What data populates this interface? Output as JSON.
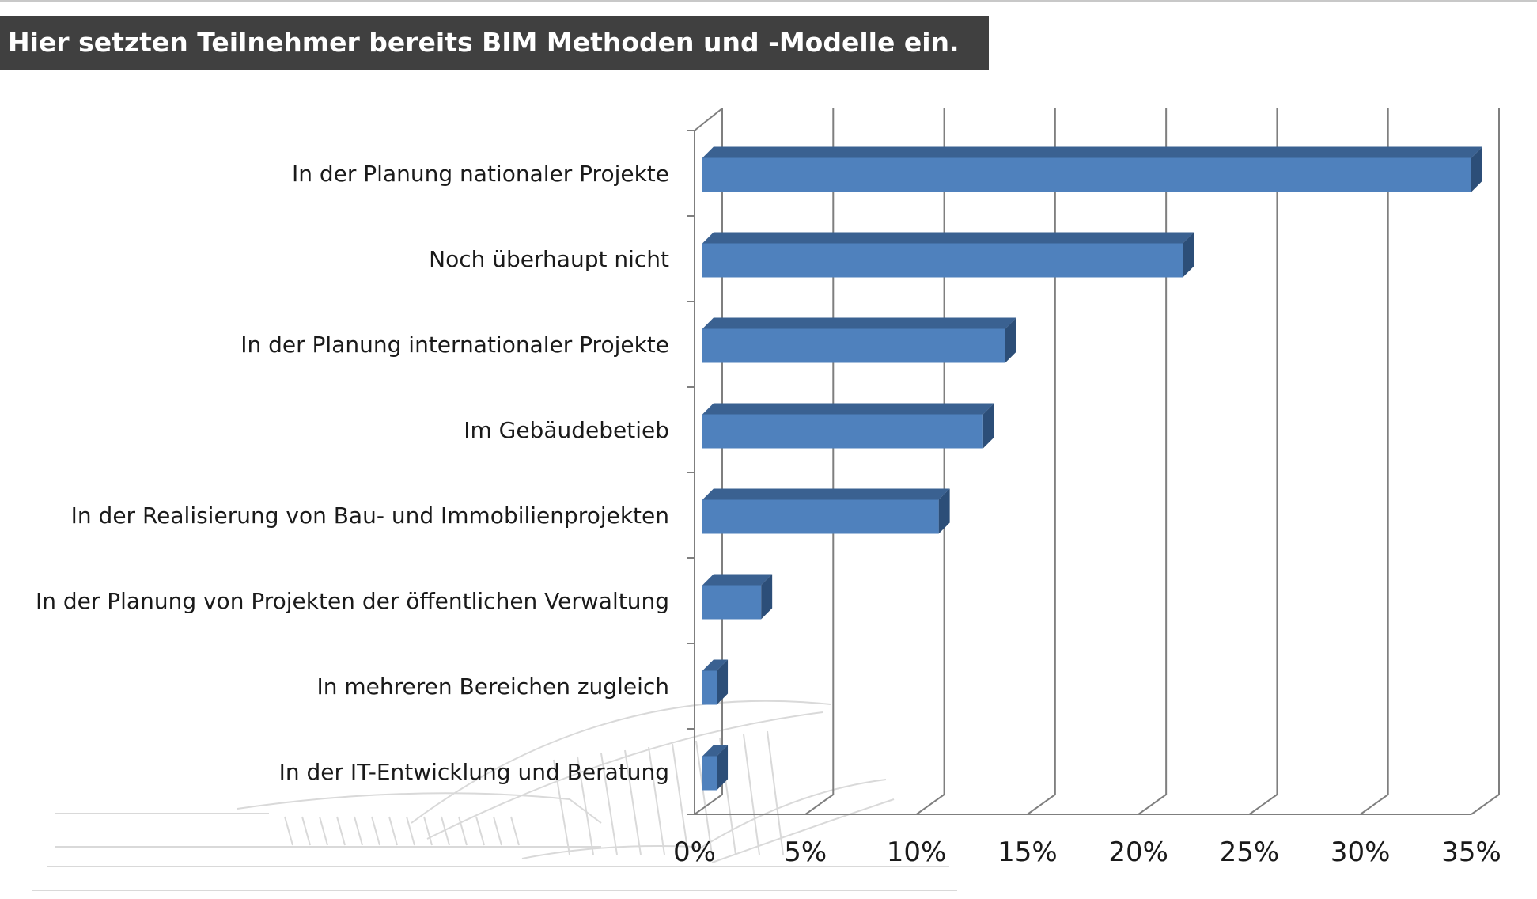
{
  "header": {
    "title": "Hier setzten Teilnehmer bereits BIM Methoden und -Modelle ein."
  },
  "colors": {
    "title_bg": "#404040",
    "bar_front": "#4f81bd",
    "bar_top": "#3a6191",
    "bar_side": "#2c4e78",
    "grid": "#7f7f7f"
  },
  "chart_data": {
    "type": "bar",
    "orientation": "horizontal",
    "style": "3d",
    "categories": [
      "In der Planung nationaler Projekte",
      "Noch überhaupt nicht",
      "In der Planung internationaler Projekte",
      "Im Gebäudebetieb",
      "In der Realisierung von Bau- und Immobilienprojekten",
      "In der Planung von Projekten der öffentlichen Verwaltung",
      "In mehreren Bereichen zugleich",
      "In der IT-Entwicklung und Beratung"
    ],
    "values": [
      35,
      22,
      14,
      13,
      11,
      3,
      1,
      1
    ],
    "xlim": [
      0,
      35
    ],
    "xticks": [
      "0%",
      "5%",
      "10%",
      "15%",
      "20%",
      "25%",
      "30%",
      "35%"
    ],
    "xlabel": "",
    "ylabel": "",
    "grid": true,
    "legend": "none"
  }
}
